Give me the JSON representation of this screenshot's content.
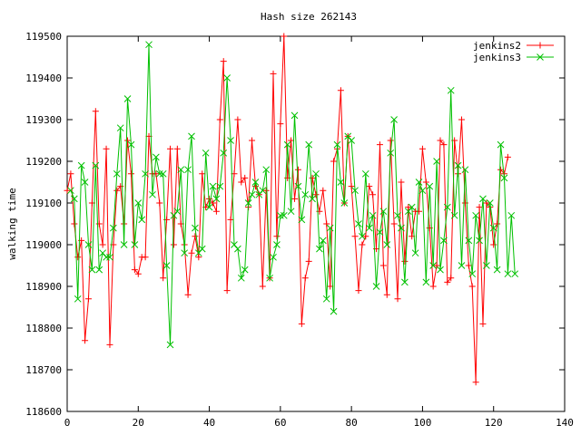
{
  "chart_data": {
    "type": "line",
    "title": "Hash size 262143",
    "xlabel": "",
    "ylabel": "walking time",
    "xlim": [
      0,
      140
    ],
    "ylim": [
      118600,
      119500
    ],
    "x_ticks": [
      0,
      20,
      40,
      60,
      80,
      100,
      120,
      140
    ],
    "y_ticks": [
      118600,
      118700,
      118800,
      118900,
      119000,
      119100,
      119200,
      119300,
      119400,
      119500
    ],
    "grid": false,
    "legend": "top-right",
    "series": [
      {
        "name": "jenkins2",
        "color": "#ff0000",
        "marker": "plus",
        "values": [
          119130,
          119170,
          119050,
          118970,
          119010,
          118770,
          118870,
          119100,
          119320,
          119050,
          119000,
          119230,
          118760,
          119000,
          119130,
          119140,
          119050,
          119250,
          119170,
          118940,
          118930,
          118970,
          118970,
          119260,
          119170,
          119170,
          119100,
          118920,
          119060,
          119230,
          119000,
          119230,
          119050,
          119000,
          118880,
          118980,
          119020,
          118970,
          119170,
          119090,
          119110,
          119100,
          119080,
          119300,
          119440,
          118890,
          119060,
          119170,
          119300,
          119150,
          119160,
          119090,
          119250,
          119140,
          119120,
          118900,
          119130,
          118920,
          119410,
          119020,
          119290,
          119500,
          119160,
          119250,
          119110,
          119180,
          118810,
          118920,
          118960,
          119160,
          119120,
          119080,
          119130,
          119050,
          118900,
          119200,
          119230,
          119370,
          119100,
          119260,
          119140,
          119020,
          118890,
          119000,
          119020,
          119140,
          119120,
          118990,
          119240,
          118950,
          118880,
          119250,
          119050,
          118870,
          119150,
          118960,
          119090,
          119020,
          119080,
          119080,
          119230,
          119150,
          119040,
          118900,
          118950,
          119250,
          119240,
          118910,
          118920,
          119250,
          119170,
          119300,
          119100,
          118950,
          118900,
          118670,
          119090,
          118810,
          119100,
          119090,
          119000,
          119050,
          119180,
          119170,
          119210
        ],
        "x_start": 0
      },
      {
        "name": "jenkins3",
        "color": "#00c000",
        "marker": "cross",
        "values": [
          119130,
          119110,
          118870,
          119190,
          119150,
          119000,
          118940,
          119190,
          118940,
          118980,
          118970,
          118970,
          119040,
          119170,
          119280,
          119000,
          119350,
          119240,
          119000,
          119100,
          119060,
          119170,
          119480,
          119120,
          119210,
          119170,
          119170,
          118950,
          118760,
          119070,
          119080,
          119180,
          118980,
          119180,
          119260,
          119040,
          118980,
          118990,
          119220,
          119090,
          119140,
          119110,
          119140,
          119220,
          119400,
          119250,
          119000,
          118990,
          118920,
          118940,
          119100,
          119120,
          119150,
          119120,
          119130,
          119180,
          118920,
          118970,
          119000,
          119070,
          119070,
          119240,
          119080,
          119310,
          119140,
          119060,
          119120,
          119240,
          119110,
          119170,
          118990,
          119010,
          118870,
          119040,
          118840,
          119240,
          119150,
          119100,
          119260,
          119250,
          119130,
          119050,
          119020,
          119170,
          119040,
          119070,
          118900,
          119030,
          119080,
          119000,
          119220,
          119300,
          119070,
          119040,
          118910,
          119080,
          119090,
          118980,
          119150,
          119130,
          118910,
          119140,
          118950,
          119200,
          118940,
          119010,
          119090,
          119370,
          119070,
          119190,
          118950,
          119180,
          119010,
          118930,
          119070,
          119010,
          119110,
          118950,
          119100,
          119040,
          118940,
          119240,
          119160,
          118930,
          119070,
          118930
        ],
        "x_start": 1
      }
    ]
  }
}
